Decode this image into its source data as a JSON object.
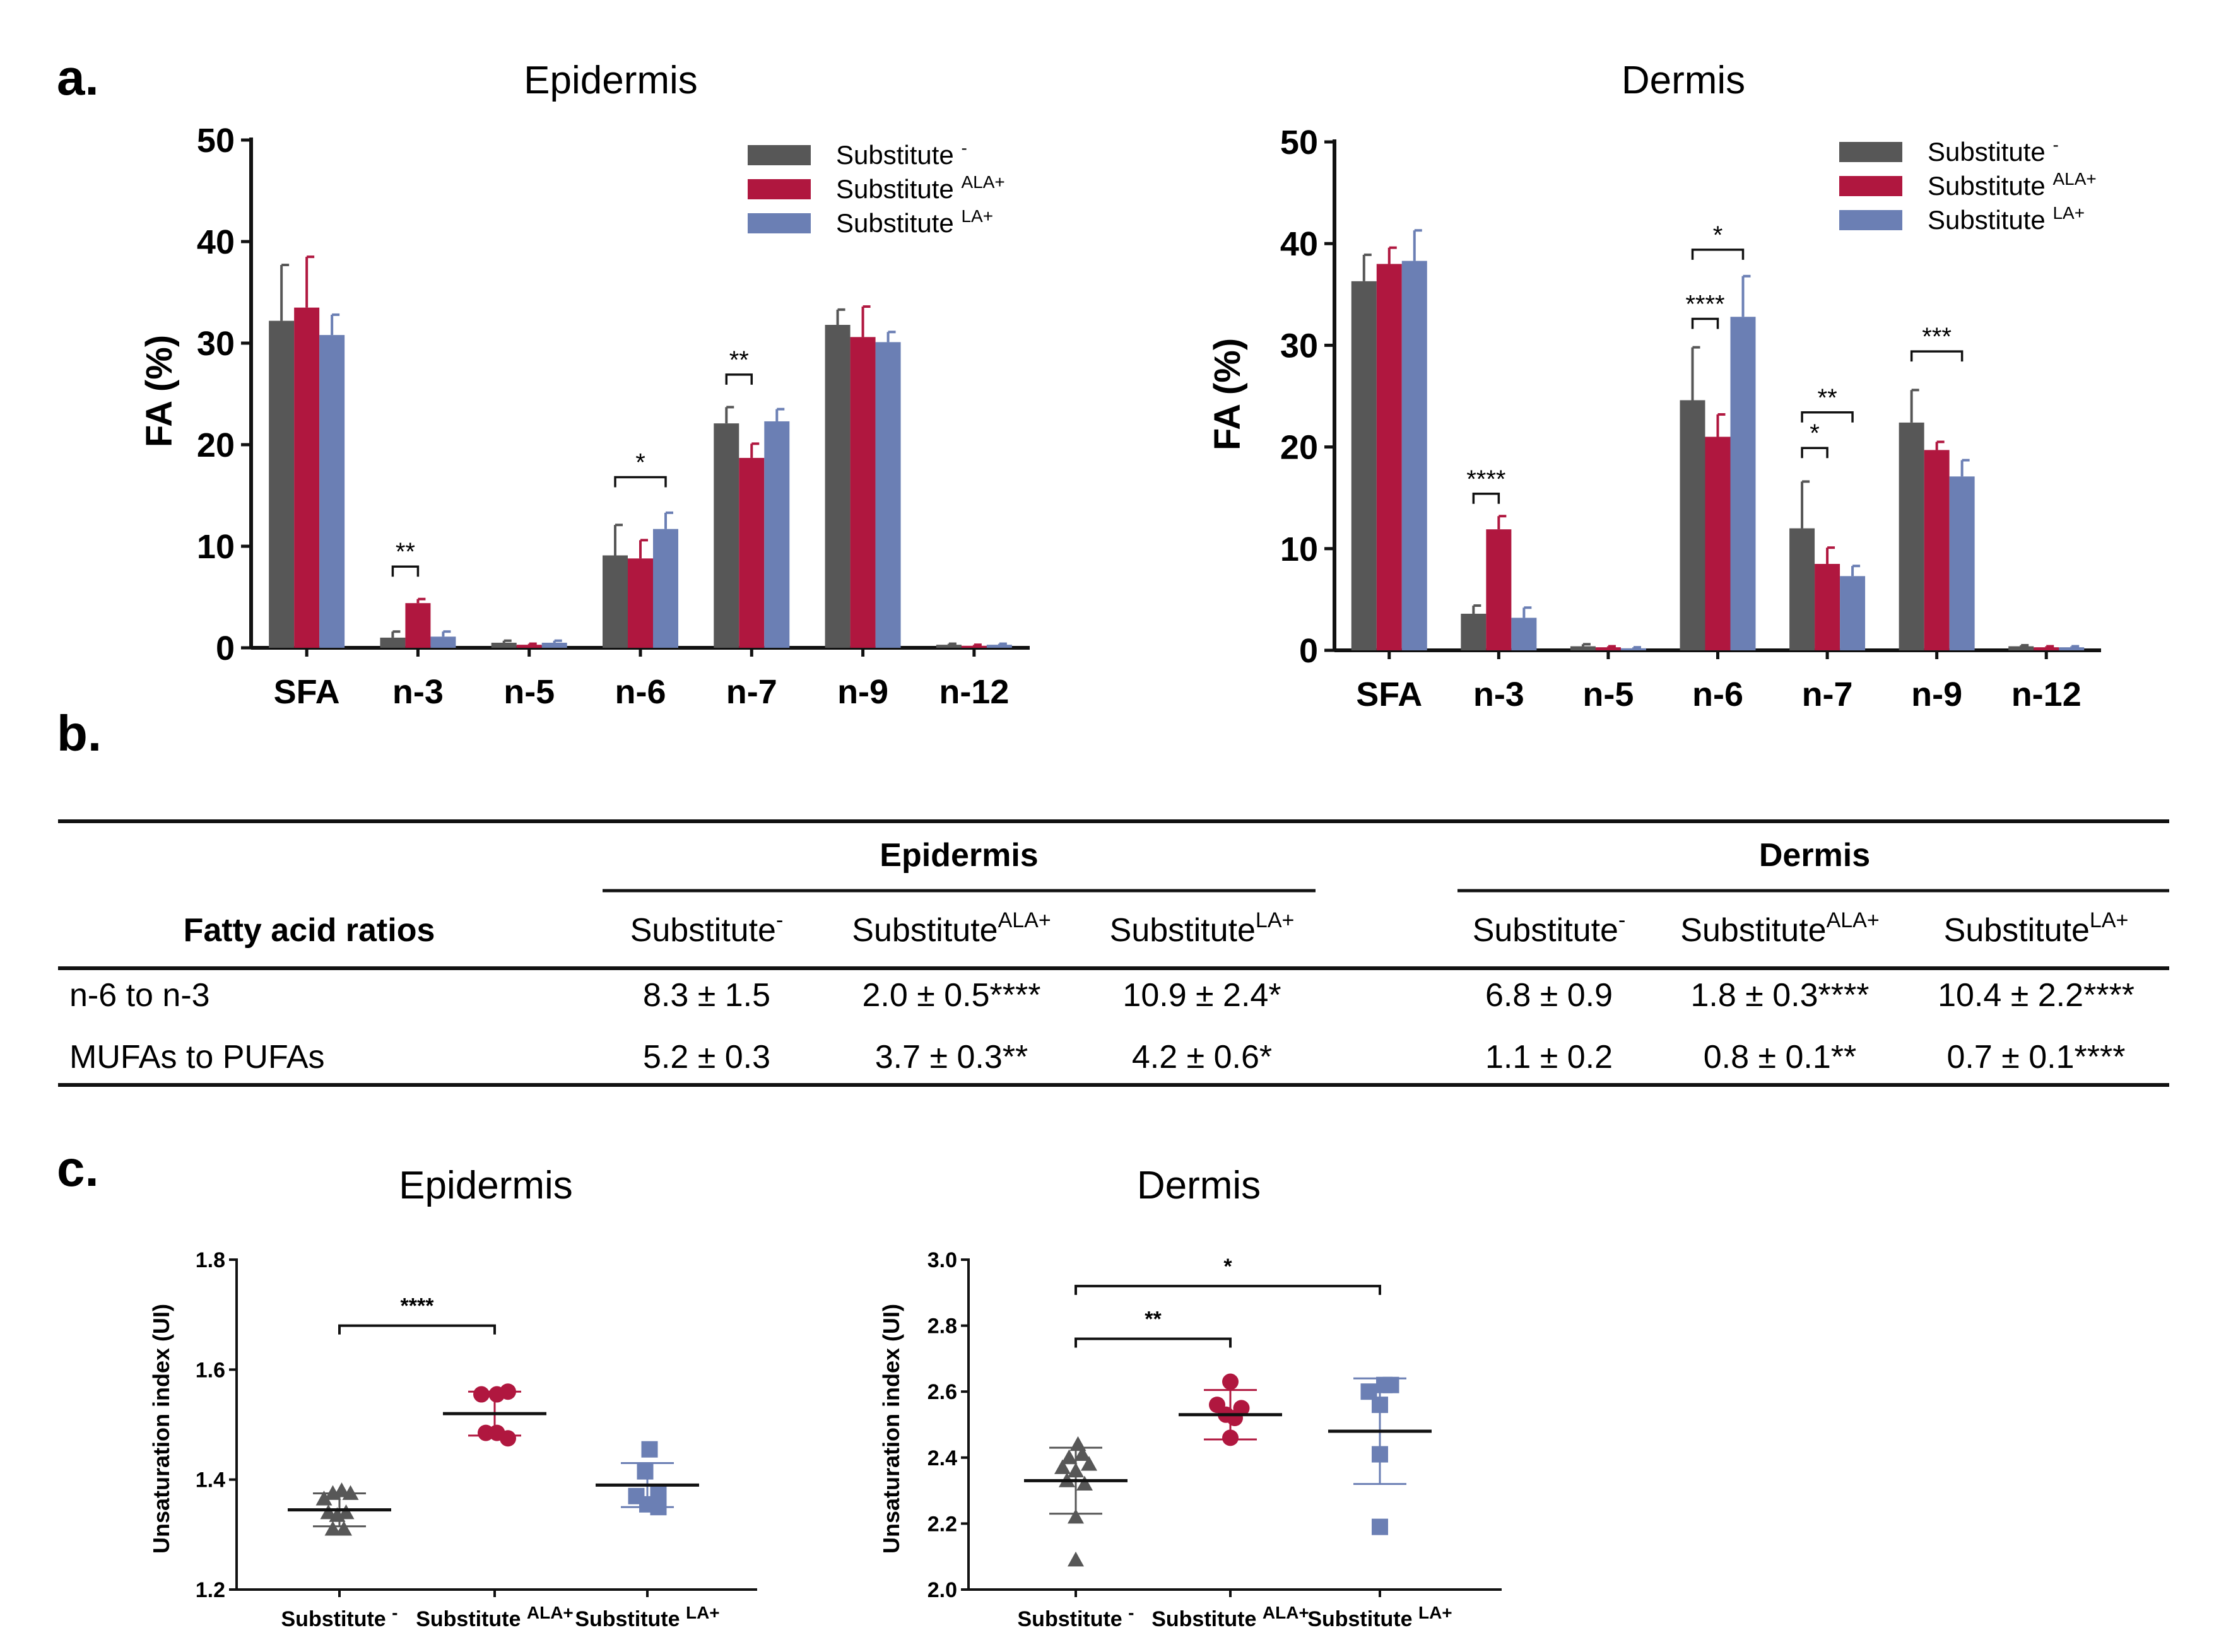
{
  "panel_labels": {
    "a": "a.",
    "b": "b.",
    "c": "c."
  },
  "colors": {
    "minus": "#575757",
    "ala": "#B0173F",
    "la": "#6B7FB4",
    "black": "#111111"
  },
  "legend": [
    {
      "base": "Substitute ",
      "sup": "-"
    },
    {
      "base": "Substitute ",
      "sup": "ALA+"
    },
    {
      "base": "Substitute ",
      "sup": "LA+"
    }
  ],
  "chart_data": [
    {
      "id": "a-epidermis",
      "type": "bar",
      "title": "Epidermis",
      "ylabel": "FA (%)",
      "xlabel": "",
      "ylim": [
        0,
        50
      ],
      "yticks": [
        "0",
        "10",
        "20",
        "30",
        "40",
        "50"
      ],
      "categories": [
        "SFA",
        "n-3",
        "n-5",
        "n-6",
        "n-7",
        "n-9",
        "n-12"
      ],
      "series": [
        {
          "name": "Substitute -",
          "values": [
            32.2,
            1.0,
            0.5,
            9.1,
            22.1,
            31.8,
            0.3
          ],
          "errors": [
            5.5,
            0.6,
            0.2,
            3.0,
            1.6,
            1.5,
            0.1
          ]
        },
        {
          "name": "Substitute ALA+",
          "values": [
            33.5,
            4.4,
            0.3,
            8.8,
            18.7,
            30.6,
            0.2
          ],
          "errors": [
            5.0,
            0.4,
            0.1,
            1.8,
            1.4,
            3.0,
            0.1
          ]
        },
        {
          "name": "Substitute LA+",
          "values": [
            30.8,
            1.1,
            0.5,
            11.7,
            22.3,
            30.1,
            0.3
          ],
          "errors": [
            2.0,
            0.5,
            0.2,
            1.6,
            1.2,
            1.0,
            0.1
          ]
        }
      ],
      "annotations": [
        {
          "cat": 1,
          "from": 0,
          "to": 1,
          "y": 8.0,
          "text": "**"
        },
        {
          "cat": 3,
          "from": 0,
          "to": 2,
          "y": 16.8,
          "text": "*"
        },
        {
          "cat": 4,
          "from": 0,
          "to": 1,
          "y": 26.9,
          "text": "**"
        }
      ]
    },
    {
      "id": "a-dermis",
      "type": "bar",
      "title": "Dermis",
      "ylabel": "FA (%)",
      "xlabel": "",
      "ylim": [
        0,
        50
      ],
      "yticks": [
        "0",
        "10",
        "20",
        "30",
        "40",
        "50"
      ],
      "categories": [
        "SFA",
        "n-3",
        "n-5",
        "n-6",
        "n-7",
        "n-9",
        "n-12"
      ],
      "series": [
        {
          "name": "Substitute -",
          "values": [
            36.3,
            3.6,
            0.4,
            24.6,
            12.0,
            22.4,
            0.4
          ],
          "errors": [
            2.6,
            0.8,
            0.2,
            5.2,
            4.6,
            3.2,
            0.1
          ]
        },
        {
          "name": "Substitute ALA+",
          "values": [
            38.0,
            11.9,
            0.3,
            21.0,
            8.5,
            19.7,
            0.3
          ],
          "errors": [
            1.6,
            1.3,
            0.1,
            2.2,
            1.6,
            0.8,
            0.1
          ]
        },
        {
          "name": "Substitute LA+",
          "values": [
            38.3,
            3.2,
            0.2,
            32.8,
            7.3,
            17.1,
            0.3
          ],
          "errors": [
            3.0,
            1.0,
            0.1,
            4.0,
            1.0,
            1.6,
            0.1
          ]
        }
      ],
      "annotations": [
        {
          "cat": 1,
          "from": 0,
          "to": 1,
          "y": 15.4,
          "text": "****"
        },
        {
          "cat": 3,
          "from": 0,
          "to": 2,
          "y": 39.4,
          "text": "*"
        },
        {
          "cat": 3,
          "from": 0,
          "to": 1,
          "y": 32.6,
          "text": "****"
        },
        {
          "cat": 4,
          "from": 0,
          "to": 1,
          "y": 19.9,
          "text": "*"
        },
        {
          "cat": 4,
          "from": 0,
          "to": 2,
          "y": 23.4,
          "text": "**"
        },
        {
          "cat": 5,
          "from": 0,
          "to": 2,
          "y": 29.4,
          "text": "***"
        }
      ]
    },
    {
      "id": "c-epidermis",
      "type": "scatter",
      "title": "Epidermis",
      "ylabel": "Unsaturation index (UI)",
      "xlabel": "",
      "ylim": [
        1.2,
        1.8
      ],
      "yticks": [
        "1.2",
        "1.4",
        "1.6",
        "1.8"
      ],
      "groups": [
        {
          "name": "Substitute -",
          "marker": "triangle",
          "mean": 1.345,
          "sd": 0.03,
          "points": [
            [
              -0.35,
              1.365
            ],
            [
              -0.15,
              1.375
            ],
            [
              0.05,
              1.38
            ],
            [
              0.25,
              1.375
            ],
            [
              -0.25,
              1.34
            ],
            [
              -0.05,
              1.335
            ],
            [
              0.15,
              1.34
            ],
            [
              -0.15,
              1.31
            ],
            [
              0.1,
              1.31
            ]
          ]
        },
        {
          "name": "Substitute ALA+",
          "marker": "circle",
          "mean": 1.52,
          "sd": 0.04,
          "points": [
            [
              -0.3,
              1.555
            ],
            [
              0.05,
              1.555
            ],
            [
              0.3,
              1.56
            ],
            [
              -0.2,
              1.485
            ],
            [
              0.05,
              1.485
            ],
            [
              0.3,
              1.475
            ]
          ]
        },
        {
          "name": "Substitute LA+",
          "marker": "square",
          "mean": 1.39,
          "sd": 0.04,
          "points": [
            [
              0.05,
              1.455
            ],
            [
              -0.05,
              1.415
            ],
            [
              -0.25,
              1.37
            ],
            [
              0.25,
              1.375
            ],
            [
              0.0,
              1.355
            ],
            [
              0.25,
              1.35
            ]
          ]
        }
      ],
      "annotations": [
        {
          "from": 0,
          "to": 1,
          "y": 1.68,
          "text": "****"
        }
      ]
    },
    {
      "id": "c-dermis",
      "type": "scatter",
      "title": "Dermis",
      "ylabel": "Unsaturation index (UI)",
      "xlabel": "",
      "ylim": [
        2.0,
        3.0
      ],
      "yticks": [
        "2.0",
        "2.2",
        "2.4",
        "2.6",
        "2.8",
        "3.0"
      ],
      "groups": [
        {
          "name": "Substitute -",
          "marker": "triangle",
          "mean": 2.33,
          "sd": 0.1,
          "points": [
            [
              0.05,
              2.44
            ],
            [
              -0.15,
              2.4
            ],
            [
              0.15,
              2.41
            ],
            [
              -0.3,
              2.37
            ],
            [
              0.3,
              2.38
            ],
            [
              0.0,
              2.36
            ],
            [
              -0.2,
              2.33
            ],
            [
              0.2,
              2.32
            ],
            [
              0.0,
              2.22
            ],
            [
              0.0,
              2.09
            ]
          ]
        },
        {
          "name": "Substitute ALA+",
          "marker": "circle",
          "mean": 2.53,
          "sd": 0.075,
          "points": [
            [
              0.0,
              2.63
            ],
            [
              -0.3,
              2.56
            ],
            [
              0.25,
              2.55
            ],
            [
              -0.1,
              2.53
            ],
            [
              0.1,
              2.52
            ],
            [
              0.0,
              2.46
            ]
          ]
        },
        {
          "name": "Substitute LA+",
          "marker": "square",
          "mean": 2.48,
          "sd": 0.16,
          "points": [
            [
              -0.25,
              2.6
            ],
            [
              0.1,
              2.62
            ],
            [
              0.25,
              2.62
            ],
            [
              0.0,
              2.56
            ],
            [
              0.0,
              2.41
            ],
            [
              0.0,
              2.19
            ]
          ]
        }
      ],
      "annotations": [
        {
          "from": 0,
          "to": 2,
          "y": 2.92,
          "text": "*"
        },
        {
          "from": 0,
          "to": 1,
          "y": 2.76,
          "text": "**"
        }
      ]
    }
  ],
  "scatter_xticks": [
    {
      "base": "Substitute ",
      "sup": "-"
    },
    {
      "base": "Substitute ",
      "sup": "ALA+"
    },
    {
      "base": "Substitute ",
      "sup": "LA+"
    }
  ],
  "table": {
    "row_header_title": "Fatty acid ratios",
    "group_headers": [
      "Epidermis",
      "Dermis"
    ],
    "columns": [
      {
        "base": "Substitute",
        "sup": "-"
      },
      {
        "base": "Substitute",
        "sup": "ALA+"
      },
      {
        "base": "Substitute",
        "sup": "LA+"
      },
      {
        "base": "Substitute",
        "sup": "-"
      },
      {
        "base": "Substitute",
        "sup": "ALA+"
      },
      {
        "base": "Substitute",
        "sup": "LA+"
      }
    ],
    "rows": [
      {
        "label": "n-6 to n-3",
        "cells": [
          "8.3 ± 1.5",
          "2.0 ± 0.5****",
          "10.9 ± 2.4*",
          "6.8 ± 0.9",
          "1.8 ± 0.3****",
          "10.4 ± 2.2****"
        ]
      },
      {
        "label": "MUFAs to PUFAs",
        "cells": [
          "5.2 ± 0.3",
          "3.7 ± 0.3**",
          "4.2 ± 0.6*",
          "1.1 ± 0.2",
          "0.8 ± 0.1**",
          "0.7 ± 0.1****"
        ]
      }
    ]
  }
}
